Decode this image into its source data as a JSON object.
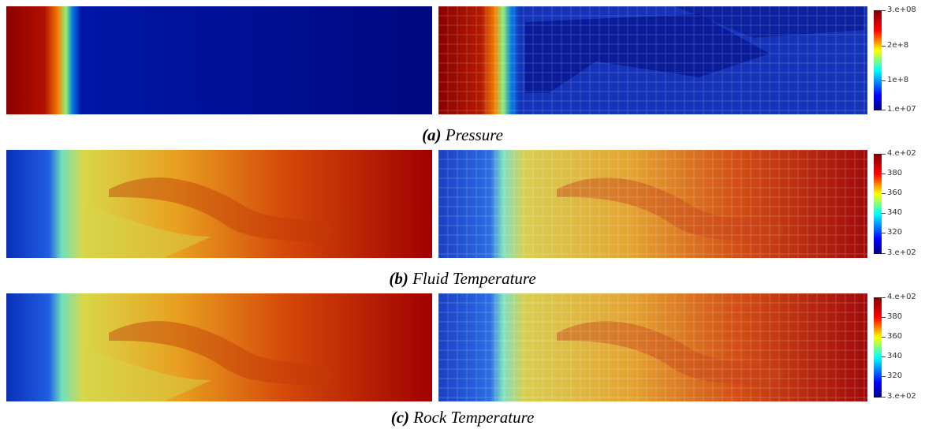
{
  "panels": [
    {
      "letter": "(a)",
      "title": "Pressure",
      "colorbar": [
        "3.e+08",
        "2e+8",
        "1e+8",
        "1.e+07"
      ]
    },
    {
      "letter": "(b)",
      "title": "Fluid Temperature",
      "colorbar": [
        "4.e+02",
        "380",
        "360",
        "340",
        "320",
        "3.e+02"
      ]
    },
    {
      "letter": "(c)",
      "title": "Rock Temperature",
      "colorbar": [
        "4.e+02",
        "380",
        "360",
        "340",
        "320",
        "3.e+02"
      ]
    }
  ],
  "colors": {
    "jet_low": "#00007f",
    "jet_blue": "#0000ff",
    "jet_cyan": "#00ffff",
    "jet_yellow": "#ffff00",
    "jet_red": "#ff0000",
    "jet_high": "#7f0000"
  }
}
